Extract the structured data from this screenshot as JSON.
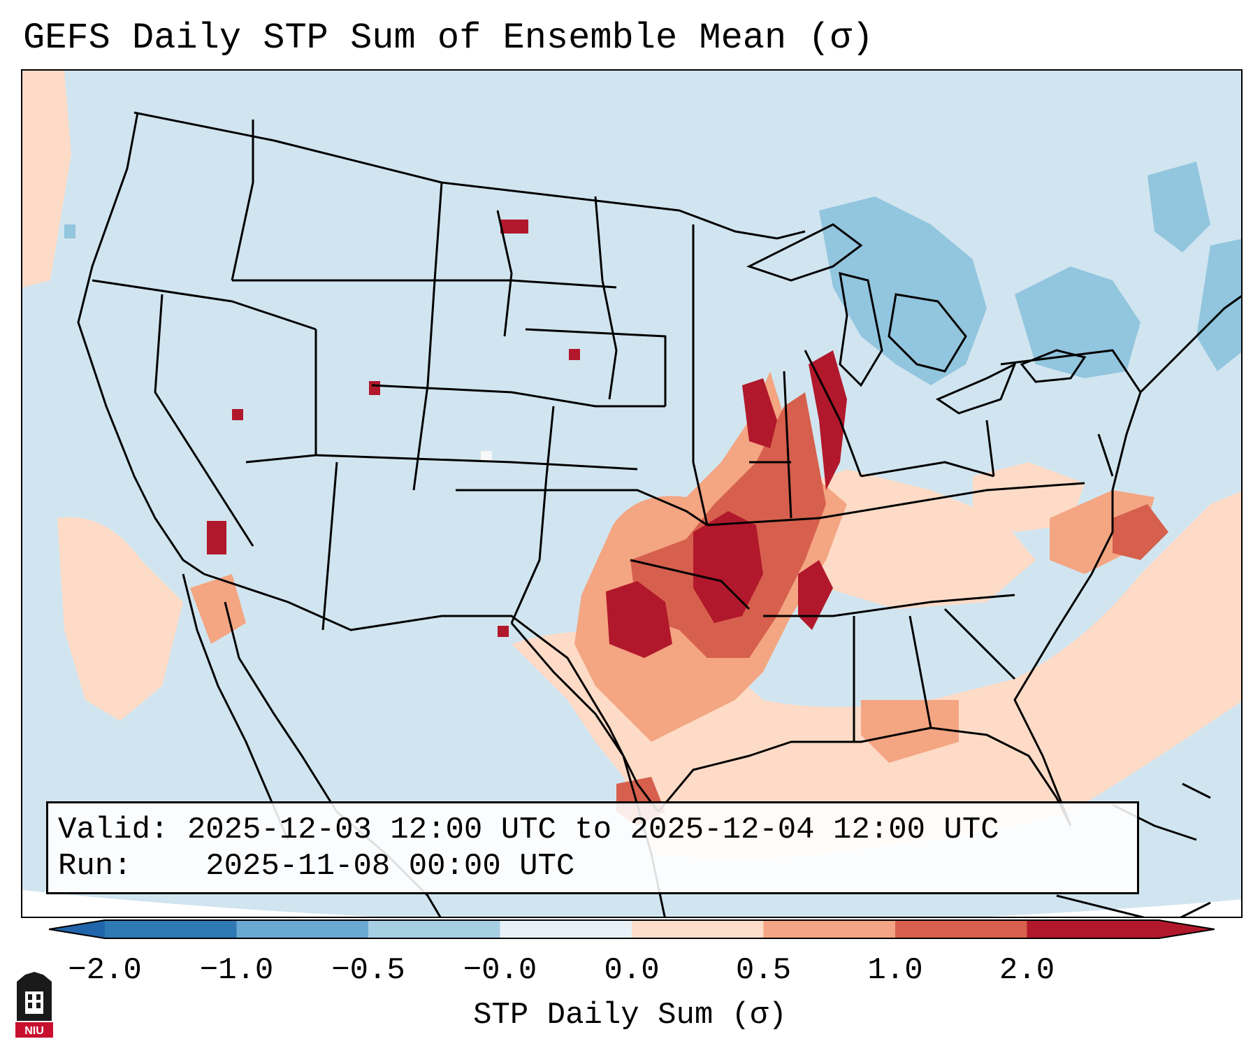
{
  "title": "GEFS Daily STP Sum of Ensemble Mean (σ)",
  "valid_box": {
    "valid_label": "Valid:",
    "valid_text": "2025-12-03 12:00 UTC to 2025-12-04 12:00 UTC",
    "run_label": "Run:",
    "run_text": "2025-11-08 00:00 UTC"
  },
  "colorbar": {
    "label": "STP Daily Sum (σ)",
    "ticks": [
      "−2.0",
      "−1.0",
      "−0.5",
      "−0.0",
      "0.0",
      "0.5",
      "1.0",
      "2.0"
    ],
    "colors": [
      "#2f79b5",
      "#6aa9d2",
      "#a7cfe4",
      "#e8f1f7",
      "#fdddcb",
      "#f4a585",
      "#d6604d",
      "#b2182b"
    ],
    "under_color": "#2166ac",
    "over_color": "#b2182b"
  },
  "map": {
    "background_color": "#d1e5f0",
    "border_color": "#000000"
  },
  "logo": {
    "text": "NIU"
  }
}
